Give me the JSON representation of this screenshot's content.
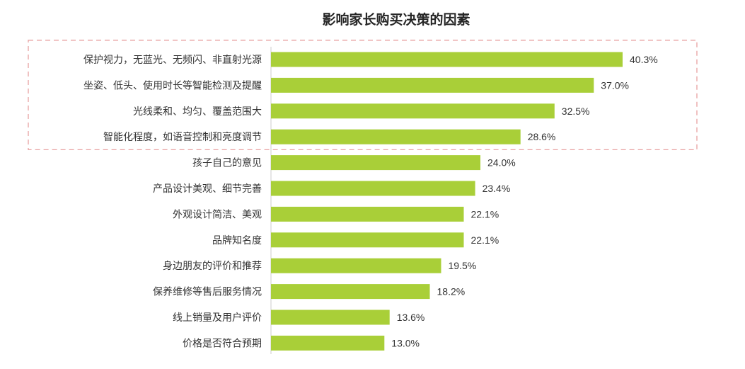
{
  "chart_data": {
    "type": "bar",
    "orientation": "horizontal",
    "title": "影响家长购买决策的因素",
    "xlabel": "",
    "ylabel": "",
    "xlim": [
      0,
      45
    ],
    "grid": false,
    "legend": "none",
    "categories": [
      "保护视力，无蓝光、无频闪、非直射光源",
      "坐姿、低头、使用时长等智能检测及提醒",
      "光线柔和、均匀、覆盖范围大",
      "智能化程度，如语音控制和亮度调节",
      "孩子自己的意见",
      "产品设计美观、细节完善",
      "外观设计简洁、美观",
      "品牌知名度",
      "身边朋友的评价和推荐",
      "保养维修等售后服务情况",
      "线上销量及用户评价",
      "价格是否符合预期"
    ],
    "values": [
      40.3,
      37.0,
      32.5,
      28.6,
      24.0,
      23.4,
      22.1,
      22.1,
      19.5,
      18.2,
      13.6,
      13.0
    ],
    "value_labels": [
      "40.3%",
      "37.0%",
      "32.5%",
      "28.6%",
      "24.0%",
      "23.4%",
      "22.1%",
      "22.1%",
      "19.5%",
      "18.2%",
      "13.6%",
      "13.0%"
    ],
    "highlight_first_n": 4,
    "colors": {
      "bar": "#a9cf38",
      "highlight_border": "#e8a0a0",
      "axis": "#cccccc",
      "text": "#333333"
    }
  }
}
